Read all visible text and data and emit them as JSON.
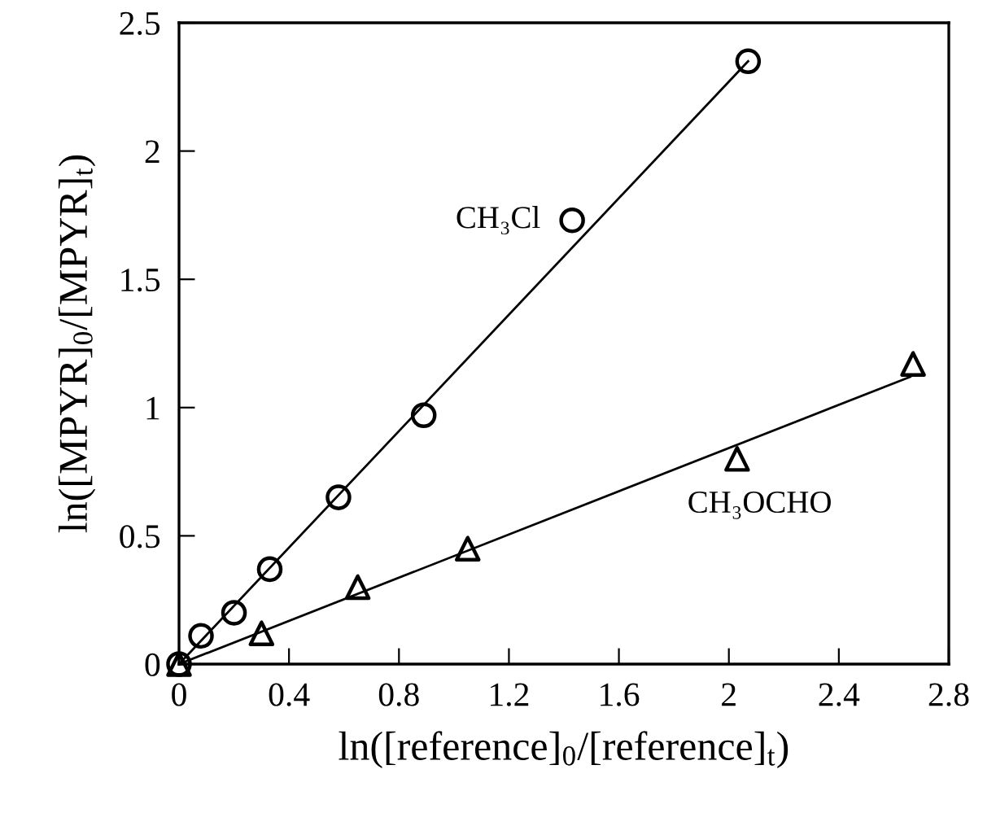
{
  "chart_data": {
    "type": "scatter",
    "xlabel": "ln([reference]$_{0}$/[reference]$_{t}$)",
    "ylabel": "ln([MPYR]$_{0}$/[MPYR]$_{t}$)",
    "xlim": [
      0,
      2.8
    ],
    "xticks": [
      0,
      0.4,
      0.8,
      1.2,
      1.6,
      2,
      2.4,
      2.8
    ],
    "ylim": [
      0,
      2.5
    ],
    "yticks": [
      0,
      0.5,
      1,
      1.5,
      2,
      2.5
    ],
    "grid": false,
    "legend": false,
    "series": [
      {
        "name": "CH₃Cl",
        "marker": "circle",
        "color": "#000000",
        "x": [
          0,
          0.08,
          0.2,
          0.33,
          0.58,
          0.89,
          1.43,
          2.07
        ],
        "values": [
          0,
          0.11,
          0.2,
          0.37,
          0.65,
          0.97,
          1.73,
          2.35
        ]
      },
      {
        "name": "CH₃OCHO",
        "marker": "triangle",
        "color": "#000000",
        "x": [
          0,
          0.3,
          0.65,
          1.05,
          2.03,
          2.67
        ],
        "values": [
          0,
          0.12,
          0.3,
          0.45,
          0.8,
          1.17
        ]
      },
      {
        "type": "line",
        "marker": "none",
        "line_style": "solid",
        "color": "#000000",
        "x": [
          0,
          2.07
        ],
        "values": [
          0,
          2.35
        ]
      },
      {
        "type": "line",
        "marker": "none",
        "line_style": "solid",
        "color": "#000000",
        "x": [
          0,
          2.66
        ],
        "values": [
          0,
          1.12
        ]
      }
    ]
  }
}
